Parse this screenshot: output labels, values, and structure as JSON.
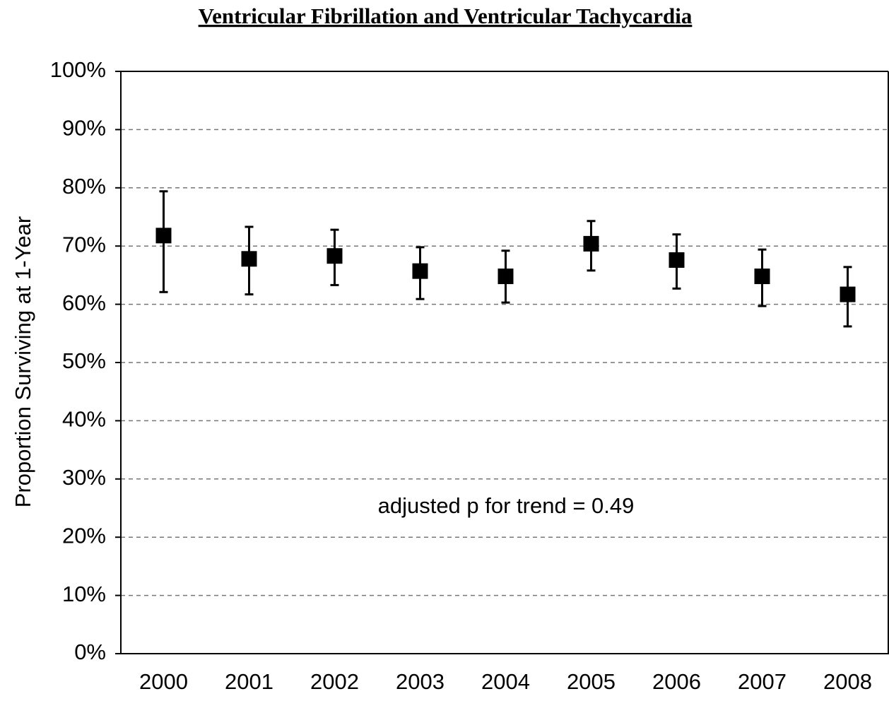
{
  "chart_data": {
    "type": "errorbar",
    "title": "Ventricular Fibrillation and Ventricular Tachycardia",
    "ylabel": "Proportion Surviving at 1-Year",
    "annotation": "adjusted p for trend = 0.49",
    "categories": [
      "2000",
      "2001",
      "2002",
      "2003",
      "2004",
      "2005",
      "2006",
      "2007",
      "2008"
    ],
    "series": [
      {
        "name": "Proportion",
        "color": "#000000",
        "values": [
          71.8,
          67.8,
          68.3,
          65.7,
          64.8,
          70.4,
          67.6,
          64.8,
          61.7
        ],
        "upper": [
          79.4,
          73.3,
          72.8,
          69.8,
          69.2,
          74.3,
          72.0,
          69.4,
          66.4
        ],
        "lower": [
          62.1,
          61.7,
          63.3,
          60.9,
          60.3,
          65.8,
          62.7,
          59.7,
          56.2
        ]
      }
    ],
    "ylim": [
      0,
      100
    ],
    "yticks": [
      {
        "value": 0,
        "label": "0%"
      },
      {
        "value": 10,
        "label": "10%"
      },
      {
        "value": 20,
        "label": "20%"
      },
      {
        "value": 30,
        "label": "30%"
      },
      {
        "value": 40,
        "label": "40%"
      },
      {
        "value": 50,
        "label": "50%"
      },
      {
        "value": 60,
        "label": "60%"
      },
      {
        "value": 70,
        "label": "70%"
      },
      {
        "value": 80,
        "label": "80%"
      },
      {
        "value": 90,
        "label": "90%"
      },
      {
        "value": 100,
        "label": "100%"
      }
    ],
    "grid": true
  }
}
